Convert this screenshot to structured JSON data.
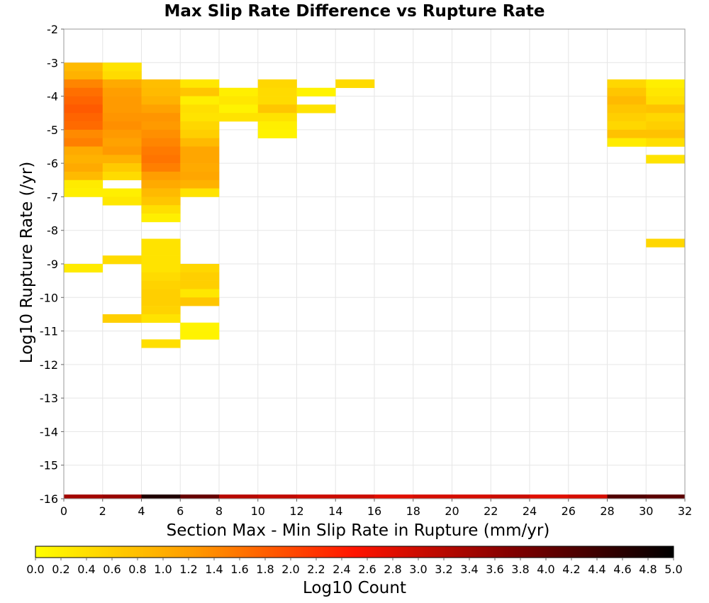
{
  "chart_data": {
    "type": "heatmap",
    "title": "Max Slip Rate Difference vs Rupture Rate",
    "xlabel": "Section Max - Min Slip Rate in Rupture (mm/yr)",
    "ylabel": "Log10 Rupture Rate (/yr)",
    "xlim": [
      0,
      32
    ],
    "ylim": [
      -16,
      -2
    ],
    "x_ticks": [
      "0",
      "2",
      "4",
      "6",
      "8",
      "10",
      "12",
      "14",
      "16",
      "18",
      "20",
      "22",
      "24",
      "26",
      "28",
      "30",
      "32"
    ],
    "y_ticks": [
      "-2",
      "-3",
      "-4",
      "-5",
      "-6",
      "-7",
      "-8",
      "-9",
      "-10",
      "-11",
      "-12",
      "-13",
      "-14",
      "-15",
      "-16"
    ],
    "x_bin_width": 2,
    "y_bin_height": 0.25,
    "grid": true,
    "colorbar": {
      "label": "Log10 Count",
      "range": [
        0.0,
        5.0
      ],
      "ticks": [
        "0.0",
        "0.2",
        "0.4",
        "0.6",
        "0.8",
        "1.0",
        "1.2",
        "1.4",
        "1.6",
        "1.8",
        "2.0",
        "2.2",
        "2.4",
        "2.6",
        "2.8",
        "3.0",
        "3.2",
        "3.4",
        "3.6",
        "3.8",
        "4.0",
        "4.2",
        "4.4",
        "4.6",
        "4.8",
        "5.0"
      ],
      "colors": [
        "#ffff00",
        "#ff9a00",
        "#ff1400",
        "#800000",
        "#000000"
      ]
    },
    "cells": [
      {
        "x": 0,
        "y": -3.0,
        "v": 0.85
      },
      {
        "x": 0,
        "y": -3.25,
        "v": 0.95
      },
      {
        "x": 0,
        "y": -3.5,
        "v": 1.45
      },
      {
        "x": 0,
        "y": -3.75,
        "v": 1.65
      },
      {
        "x": 0,
        "y": -4.0,
        "v": 1.75
      },
      {
        "x": 0,
        "y": -4.25,
        "v": 1.85
      },
      {
        "x": 0,
        "y": -4.5,
        "v": 1.75
      },
      {
        "x": 0,
        "y": -4.75,
        "v": 1.7
      },
      {
        "x": 0,
        "y": -5.0,
        "v": 1.4
      },
      {
        "x": 0,
        "y": -5.25,
        "v": 1.5
      },
      {
        "x": 0,
        "y": -5.5,
        "v": 1.05
      },
      {
        "x": 0,
        "y": -5.75,
        "v": 0.95
      },
      {
        "x": 0,
        "y": -6.0,
        "v": 1.05
      },
      {
        "x": 0,
        "y": -6.25,
        "v": 0.85
      },
      {
        "x": 0,
        "y": -6.5,
        "v": 0.25
      },
      {
        "x": 0,
        "y": -6.75,
        "v": 0.2
      },
      {
        "x": 0,
        "y": -9.0,
        "v": 0.25
      },
      {
        "x": 2,
        "y": -3.0,
        "v": 0.35
      },
      {
        "x": 2,
        "y": -3.25,
        "v": 0.45
      },
      {
        "x": 2,
        "y": -3.5,
        "v": 1.05
      },
      {
        "x": 2,
        "y": -3.75,
        "v": 1.2
      },
      {
        "x": 2,
        "y": -4.0,
        "v": 1.25
      },
      {
        "x": 2,
        "y": -4.25,
        "v": 1.25
      },
      {
        "x": 2,
        "y": -4.5,
        "v": 1.3
      },
      {
        "x": 2,
        "y": -4.75,
        "v": 1.35
      },
      {
        "x": 2,
        "y": -5.0,
        "v": 1.25
      },
      {
        "x": 2,
        "y": -5.25,
        "v": 1.15
      },
      {
        "x": 2,
        "y": -5.5,
        "v": 1.25
      },
      {
        "x": 2,
        "y": -5.75,
        "v": 0.95
      },
      {
        "x": 2,
        "y": -6.0,
        "v": 0.65
      },
      {
        "x": 2,
        "y": -6.25,
        "v": 0.45
      },
      {
        "x": 2,
        "y": -6.75,
        "v": 0.2
      },
      {
        "x": 2,
        "y": -7.0,
        "v": 0.3
      },
      {
        "x": 2,
        "y": -8.75,
        "v": 0.45
      },
      {
        "x": 2,
        "y": -10.5,
        "v": 0.6
      },
      {
        "x": 4,
        "y": -3.5,
        "v": 0.8
      },
      {
        "x": 4,
        "y": -3.75,
        "v": 0.85
      },
      {
        "x": 4,
        "y": -4.0,
        "v": 0.95
      },
      {
        "x": 4,
        "y": -4.25,
        "v": 1.15
      },
      {
        "x": 4,
        "y": -4.5,
        "v": 1.3
      },
      {
        "x": 4,
        "y": -4.75,
        "v": 1.25
      },
      {
        "x": 4,
        "y": -5.0,
        "v": 1.35
      },
      {
        "x": 4,
        "y": -5.25,
        "v": 1.45
      },
      {
        "x": 4,
        "y": -5.5,
        "v": 1.55
      },
      {
        "x": 4,
        "y": -5.75,
        "v": 1.6
      },
      {
        "x": 4,
        "y": -6.0,
        "v": 1.5
      },
      {
        "x": 4,
        "y": -6.25,
        "v": 1.2
      },
      {
        "x": 4,
        "y": -6.5,
        "v": 1.05
      },
      {
        "x": 4,
        "y": -6.75,
        "v": 0.85
      },
      {
        "x": 4,
        "y": -7.0,
        "v": 0.7
      },
      {
        "x": 4,
        "y": -7.25,
        "v": 0.4
      },
      {
        "x": 4,
        "y": -7.5,
        "v": 0.2
      },
      {
        "x": 4,
        "y": -8.25,
        "v": 0.35
      },
      {
        "x": 4,
        "y": -8.5,
        "v": 0.35
      },
      {
        "x": 4,
        "y": -8.75,
        "v": 0.35
      },
      {
        "x": 4,
        "y": -9.0,
        "v": 0.35
      },
      {
        "x": 4,
        "y": -9.25,
        "v": 0.45
      },
      {
        "x": 4,
        "y": -9.5,
        "v": 0.55
      },
      {
        "x": 4,
        "y": -9.75,
        "v": 0.6
      },
      {
        "x": 4,
        "y": -10.0,
        "v": 0.6
      },
      {
        "x": 4,
        "y": -10.25,
        "v": 0.55
      },
      {
        "x": 4,
        "y": -10.5,
        "v": 0.35
      },
      {
        "x": 4,
        "y": -11.25,
        "v": 0.4
      },
      {
        "x": 6,
        "y": -3.5,
        "v": 0.3
      },
      {
        "x": 6,
        "y": -3.75,
        "v": 0.7
      },
      {
        "x": 6,
        "y": -4.0,
        "v": 0.2
      },
      {
        "x": 6,
        "y": -4.25,
        "v": 0.4
      },
      {
        "x": 6,
        "y": -4.5,
        "v": 0.35
      },
      {
        "x": 6,
        "y": -4.75,
        "v": 0.5
      },
      {
        "x": 6,
        "y": -5.0,
        "v": 0.6
      },
      {
        "x": 6,
        "y": -5.25,
        "v": 0.85
      },
      {
        "x": 6,
        "y": -5.5,
        "v": 1.1
      },
      {
        "x": 6,
        "y": -5.75,
        "v": 1.1
      },
      {
        "x": 6,
        "y": -6.0,
        "v": 1.05
      },
      {
        "x": 6,
        "y": -6.25,
        "v": 1.1
      },
      {
        "x": 6,
        "y": -6.5,
        "v": 0.95
      },
      {
        "x": 6,
        "y": -6.75,
        "v": 0.35
      },
      {
        "x": 6,
        "y": -9.0,
        "v": 0.5
      },
      {
        "x": 6,
        "y": -9.25,
        "v": 0.6
      },
      {
        "x": 6,
        "y": -9.5,
        "v": 0.6
      },
      {
        "x": 6,
        "y": -9.75,
        "v": 0.3
      },
      {
        "x": 6,
        "y": -10.0,
        "v": 0.7
      },
      {
        "x": 6,
        "y": -10.75,
        "v": 0.15
      },
      {
        "x": 6,
        "y": -11.0,
        "v": 0.15
      },
      {
        "x": 8,
        "y": -3.75,
        "v": 0.2
      },
      {
        "x": 8,
        "y": -4.0,
        "v": 0.3
      },
      {
        "x": 8,
        "y": -4.25,
        "v": 0.15
      },
      {
        "x": 8,
        "y": -4.5,
        "v": 0.35
      },
      {
        "x": 10,
        "y": -3.5,
        "v": 0.5
      },
      {
        "x": 10,
        "y": -3.75,
        "v": 0.45
      },
      {
        "x": 10,
        "y": -4.0,
        "v": 0.45
      },
      {
        "x": 10,
        "y": -4.25,
        "v": 0.7
      },
      {
        "x": 10,
        "y": -4.5,
        "v": 0.35
      },
      {
        "x": 10,
        "y": -4.75,
        "v": 0.2
      },
      {
        "x": 10,
        "y": -5.0,
        "v": 0.15
      },
      {
        "x": 12,
        "y": -3.75,
        "v": 0.15
      },
      {
        "x": 12,
        "y": -4.25,
        "v": 0.35
      },
      {
        "x": 14,
        "y": -3.5,
        "v": 0.45
      },
      {
        "x": 28,
        "y": -3.5,
        "v": 0.5
      },
      {
        "x": 28,
        "y": -3.75,
        "v": 0.7
      },
      {
        "x": 28,
        "y": -4.0,
        "v": 0.85
      },
      {
        "x": 28,
        "y": -4.25,
        "v": 0.7
      },
      {
        "x": 28,
        "y": -4.5,
        "v": 0.6
      },
      {
        "x": 28,
        "y": -4.75,
        "v": 0.5
      },
      {
        "x": 28,
        "y": -5.0,
        "v": 0.75
      },
      {
        "x": 28,
        "y": -5.25,
        "v": 0.25
      },
      {
        "x": 30,
        "y": -3.5,
        "v": 0.2
      },
      {
        "x": 30,
        "y": -3.75,
        "v": 0.3
      },
      {
        "x": 30,
        "y": -4.0,
        "v": 0.4
      },
      {
        "x": 30,
        "y": -4.25,
        "v": 0.75
      },
      {
        "x": 30,
        "y": -4.5,
        "v": 0.5
      },
      {
        "x": 30,
        "y": -4.75,
        "v": 0.6
      },
      {
        "x": 30,
        "y": -5.0,
        "v": 0.75
      },
      {
        "x": 30,
        "y": -5.25,
        "v": 0.4
      },
      {
        "x": 30,
        "y": -5.75,
        "v": 0.35
      },
      {
        "x": 30,
        "y": -8.25,
        "v": 0.5
      }
    ],
    "bottom_row": {
      "y": -16.0,
      "values": [
        3.4,
        3.5,
        4.7,
        4.0,
        3.2,
        3.1,
        3.0,
        3.0,
        2.8,
        2.9,
        2.9,
        3.0,
        2.8,
        2.9,
        4.2,
        4.1
      ]
    }
  }
}
